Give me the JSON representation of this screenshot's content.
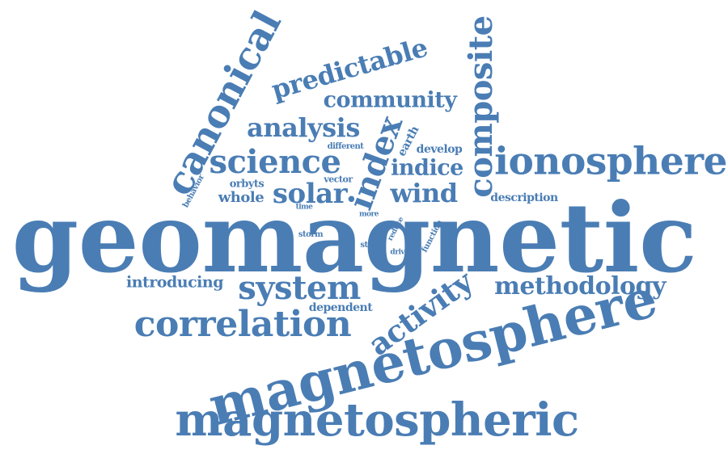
{
  "theme": {
    "word_color": "#4a7db4",
    "background": "#ffffff"
  },
  "words": [
    {
      "id": "geomagnetic",
      "text": "geomagnetic"
    },
    {
      "id": "magnetosphere",
      "text": "magnetosphere"
    },
    {
      "id": "magnetospheric",
      "text": "magnetospheric"
    },
    {
      "id": "ionosphere",
      "text": "ionosphere"
    },
    {
      "id": "canonical",
      "text": "canonical"
    },
    {
      "id": "composite",
      "text": "composite"
    },
    {
      "id": "correlation",
      "text": "correlation"
    },
    {
      "id": "system",
      "text": "system"
    },
    {
      "id": "activity",
      "text": "activity"
    },
    {
      "id": "science",
      "text": "science"
    },
    {
      "id": "index",
      "text": "index"
    },
    {
      "id": "methodology",
      "text": "methodology"
    },
    {
      "id": "predictable",
      "text": "predictable"
    },
    {
      "id": "analysis",
      "text": "analysis"
    },
    {
      "id": "community",
      "text": "community"
    },
    {
      "id": "solar",
      "text": "solar"
    },
    {
      "id": "wind",
      "text": "wind"
    },
    {
      "id": "indice",
      "text": "indice"
    },
    {
      "id": "introducing",
      "text": "introducing"
    },
    {
      "id": "whole",
      "text": "whole"
    },
    {
      "id": "description",
      "text": "description"
    },
    {
      "id": "develop",
      "text": "develop"
    },
    {
      "id": "dependent",
      "text": "dependent"
    },
    {
      "id": "orbyts",
      "text": "orbyts"
    },
    {
      "id": "earth",
      "text": "earth"
    },
    {
      "id": "vector",
      "text": "vector"
    },
    {
      "id": "different",
      "text": "different"
    },
    {
      "id": "behavior",
      "text": "behavior"
    },
    {
      "id": "storm",
      "text": "storm"
    },
    {
      "id": "function",
      "text": "function"
    },
    {
      "id": "state",
      "text": "state"
    },
    {
      "id": "driver",
      "text": "driver"
    },
    {
      "id": "reduce",
      "text": "reduce"
    },
    {
      "id": "time",
      "text": "time"
    },
    {
      "id": "more",
      "text": "more"
    }
  ]
}
